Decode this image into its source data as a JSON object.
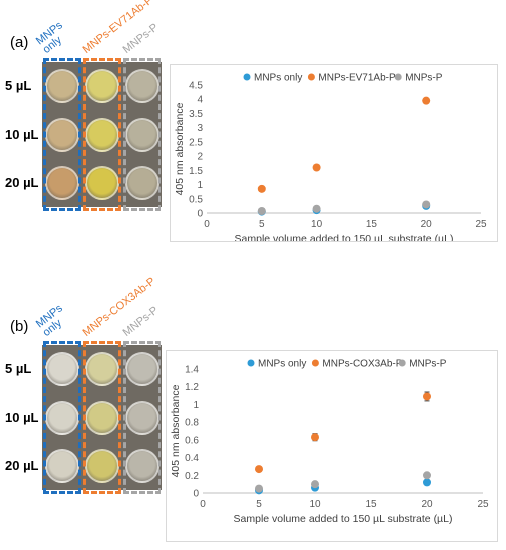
{
  "panels": [
    {
      "label": "(a)",
      "columns": [
        {
          "name": "MNPs\nonly",
          "color": "#1f6fbf"
        },
        {
          "name": "MNPs-EV71Ab-P",
          "color": "#ed7d31"
        },
        {
          "name": "MNPs-P",
          "color": "#a5a5a5"
        }
      ],
      "rows": [
        "5 µL",
        "10 µL",
        "20 µL"
      ],
      "well_colors": [
        [
          "#c8b48a",
          "#d8cf72",
          "#b9b39f"
        ],
        [
          "#c9ae82",
          "#d7cb5e",
          "#b7b19c"
        ],
        [
          "#c79c6a",
          "#d6c54a",
          "#b5ad95"
        ]
      ]
    },
    {
      "label": "(b)",
      "columns": [
        {
          "name": "MNPs\nonly",
          "color": "#1f6fbf"
        },
        {
          "name": "MNPs-COX3Ab-P",
          "color": "#ed7d31"
        },
        {
          "name": "MNPs-P",
          "color": "#a5a5a5"
        }
      ],
      "rows": [
        "5 µL",
        "10 µL",
        "20 µL"
      ],
      "well_colors": [
        [
          "#d9d6cc",
          "#d4cf9c",
          "#bfbcb2"
        ],
        [
          "#d6d3c7",
          "#d1ca86",
          "#bdb9ae"
        ],
        [
          "#d4d0c2",
          "#cfc46c",
          "#bab6aa"
        ]
      ]
    }
  ],
  "chart_data": [
    {
      "type": "scatter",
      "title": "",
      "xlabel": "Sample volume added to 150 µL substrate (µL)",
      "ylabel": "405 nm absorbance",
      "xlim": [
        0,
        25
      ],
      "ylim": [
        0,
        4.5
      ],
      "xticks": [
        0,
        5,
        10,
        15,
        20,
        25
      ],
      "yticks": [
        0,
        0.5,
        1,
        1.5,
        2,
        2.5,
        3,
        3.5,
        4,
        4.5
      ],
      "ytick_labels": [
        "0",
        "0.5",
        "1",
        "1.5",
        "2",
        "2.5",
        "3",
        "3.5",
        "4",
        "4.5"
      ],
      "legend": "top",
      "grid": false,
      "series": [
        {
          "name": "MNPs only",
          "color": "#2e9bd6",
          "x": [
            5,
            10,
            20
          ],
          "y": [
            0.05,
            0.1,
            0.25
          ]
        },
        {
          "name": "MNPs-EV71Ab-P",
          "color": "#ed7d31",
          "x": [
            5,
            10,
            20
          ],
          "y": [
            0.85,
            1.6,
            3.95
          ]
        },
        {
          "name": "MNPs-P",
          "color": "#a5a5a5",
          "x": [
            5,
            10,
            20
          ],
          "y": [
            0.07,
            0.15,
            0.3
          ]
        }
      ]
    },
    {
      "type": "scatter",
      "title": "",
      "xlabel": "Sample volume added to 150 µL substrate (µL)",
      "ylabel": "405 nm absorbance",
      "xlim": [
        0,
        25
      ],
      "ylim": [
        0,
        1.4
      ],
      "xticks": [
        0,
        5,
        10,
        15,
        20,
        25
      ],
      "yticks": [
        0,
        0.2,
        0.4,
        0.6,
        0.8,
        1.0,
        1.2,
        1.4
      ],
      "ytick_labels": [
        "0",
        "0.2",
        "0.4",
        "0.6",
        "0.8",
        "1",
        "1.2",
        "1.4"
      ],
      "legend": "top",
      "grid": false,
      "series": [
        {
          "name": "MNPs only",
          "color": "#2e9bd6",
          "x": [
            5,
            10,
            20
          ],
          "y": [
            0.03,
            0.06,
            0.12
          ]
        },
        {
          "name": "MNPs-COX3Ab-P",
          "color": "#ed7d31",
          "x": [
            5,
            10,
            20
          ],
          "y": [
            0.27,
            0.63,
            1.09
          ],
          "err": [
            0.01,
            0.04,
            0.05
          ]
        },
        {
          "name": "MNPs-P",
          "color": "#a5a5a5",
          "x": [
            5,
            10,
            20
          ],
          "y": [
            0.05,
            0.1,
            0.2
          ]
        }
      ]
    }
  ]
}
